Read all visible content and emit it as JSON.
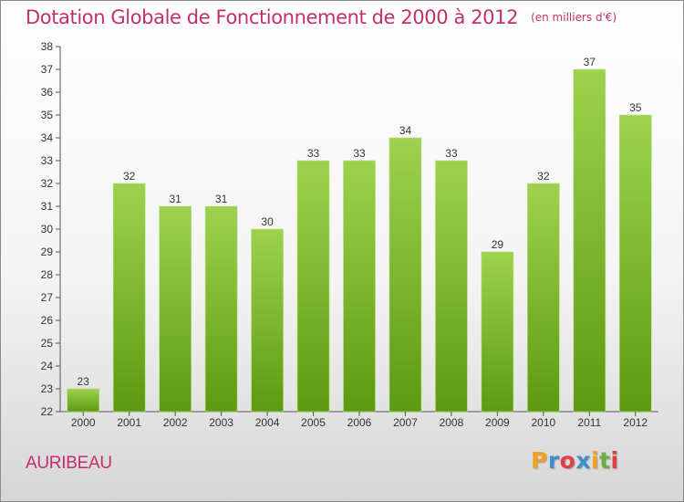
{
  "title": "Dotation Globale de Fonctionnement de 2000 à 2012",
  "unit": "(en milliers d'€)",
  "commune": "AURIBEAU",
  "logo": {
    "letters": [
      "P",
      "r",
      "o",
      "x",
      "i",
      "t",
      "i"
    ],
    "colors": [
      "#f0a020",
      "#3f8fd0",
      "#e04040",
      "#3f8fd0",
      "#f0a020",
      "#6ab23c",
      "#e04040"
    ]
  },
  "colors": {
    "title": "#c2306b",
    "bar_light": "#9ed24e",
    "bar_dark": "#5d9a10"
  },
  "chart_data": {
    "type": "bar",
    "title": "Dotation Globale de Fonctionnement de 2000 à 2012",
    "subtitle": "(en milliers d'€)",
    "categories": [
      "2000",
      "2001",
      "2002",
      "2003",
      "2004",
      "2005",
      "2006",
      "2007",
      "2008",
      "2009",
      "2010",
      "2011",
      "2012"
    ],
    "values": [
      23,
      32,
      31,
      31,
      30,
      33,
      33,
      34,
      33,
      29,
      32,
      37,
      35
    ],
    "ylim": [
      22,
      38
    ],
    "yticks": [
      22,
      23,
      24,
      25,
      26,
      27,
      28,
      29,
      30,
      31,
      32,
      33,
      34,
      35,
      36,
      37,
      38
    ],
    "grid": false,
    "data_labels": true
  }
}
